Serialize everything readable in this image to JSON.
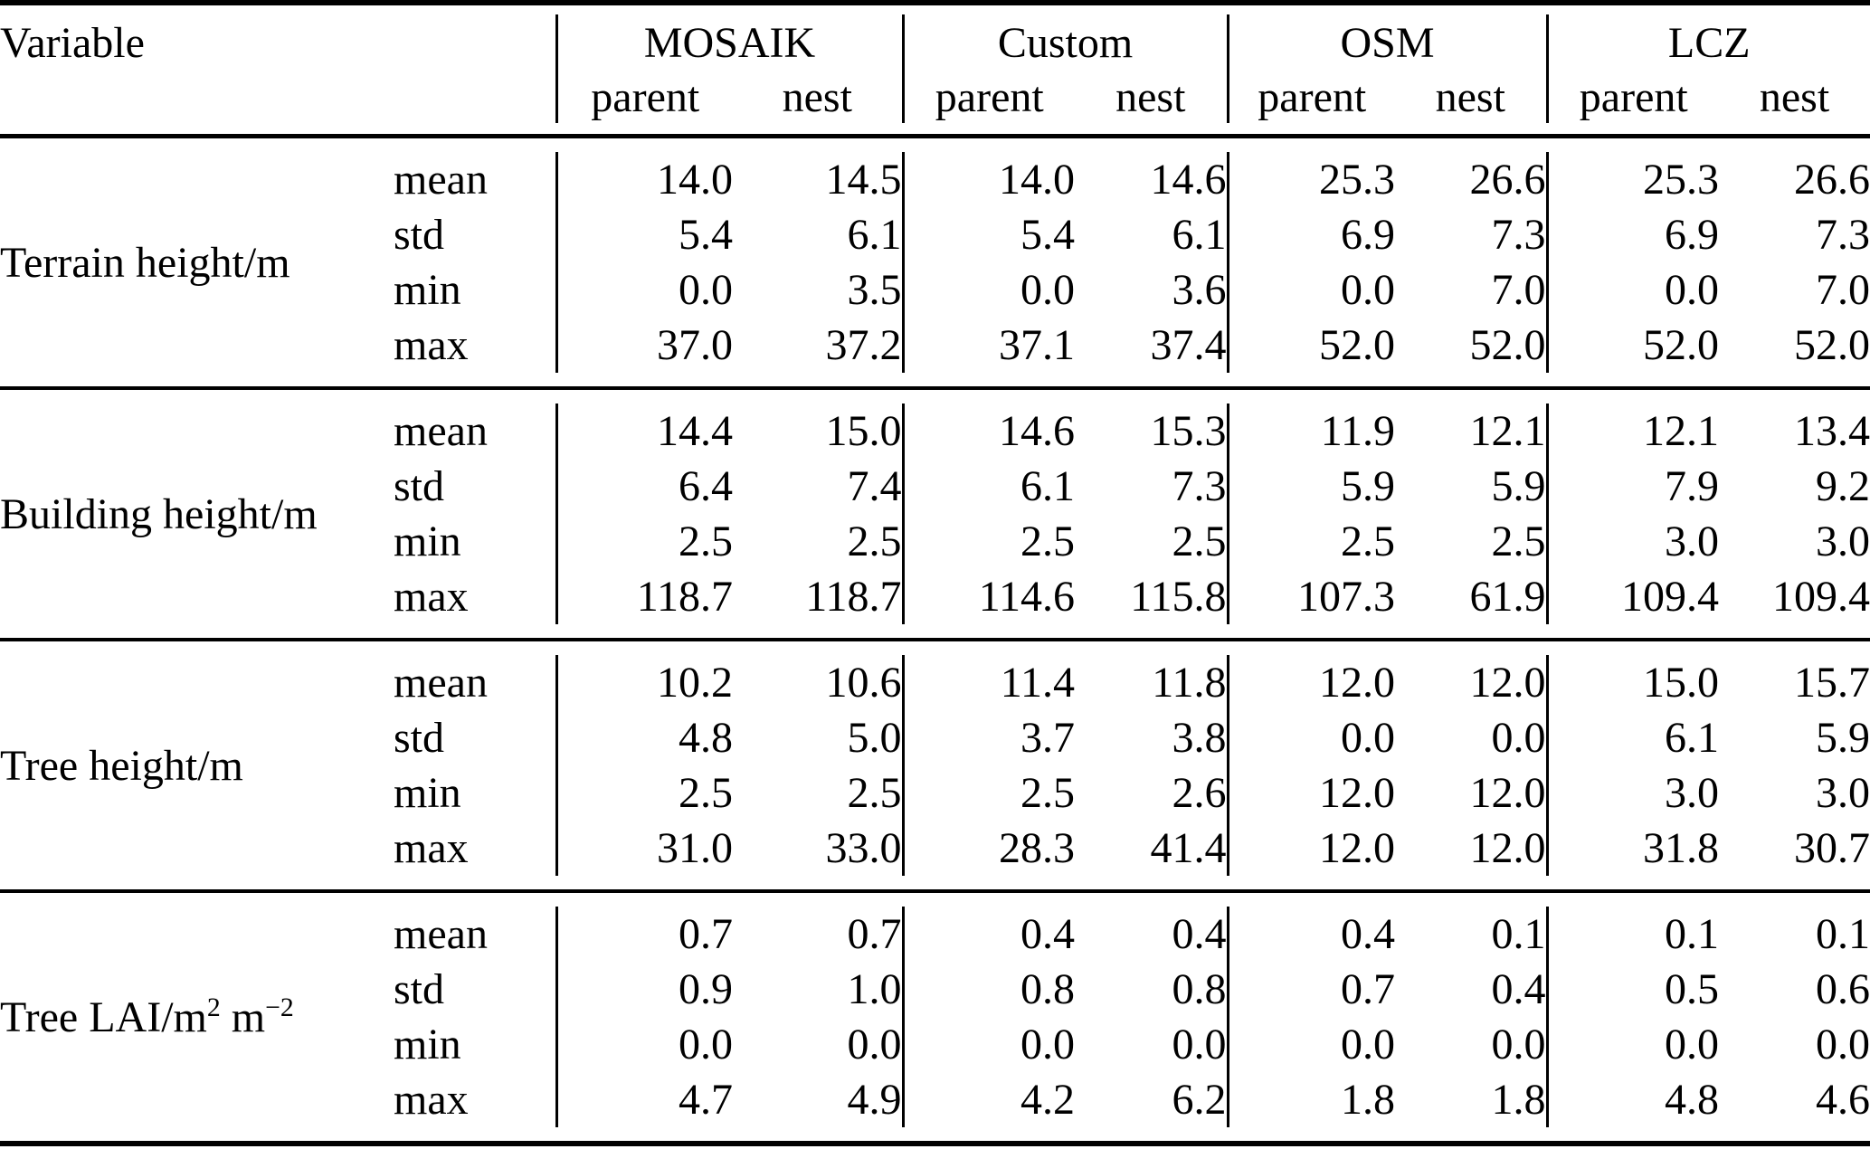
{
  "colors": {
    "background": "#ffffff",
    "text": "#000000",
    "rule": "#000000"
  },
  "table": {
    "header": {
      "variable_label": "Variable",
      "groups": [
        {
          "label": "MOSAIK"
        },
        {
          "label": "Custom"
        },
        {
          "label": "OSM"
        },
        {
          "label": "LCZ"
        }
      ],
      "subcolumns": [
        "parent",
        "nest"
      ]
    },
    "sections": [
      {
        "variable": [
          {
            "t": "Terrain height/m"
          }
        ],
        "rows": [
          {
            "stat": "mean",
            "values": [
              "14.0",
              "14.5",
              "14.0",
              "14.6",
              "25.3",
              "26.6",
              "25.3",
              "26.6"
            ]
          },
          {
            "stat": "std",
            "values": [
              "5.4",
              "6.1",
              "5.4",
              "6.1",
              "6.9",
              "7.3",
              "6.9",
              "7.3"
            ]
          },
          {
            "stat": "min",
            "values": [
              "0.0",
              "3.5",
              "0.0",
              "3.6",
              "0.0",
              "7.0",
              "0.0",
              "7.0"
            ]
          },
          {
            "stat": "max",
            "values": [
              "37.0",
              "37.2",
              "37.1",
              "37.4",
              "52.0",
              "52.0",
              "52.0",
              "52.0"
            ]
          }
        ]
      },
      {
        "variable": [
          {
            "t": "Building height/m"
          }
        ],
        "rows": [
          {
            "stat": "mean",
            "values": [
              "14.4",
              "15.0",
              "14.6",
              "15.3",
              "11.9",
              "12.1",
              "12.1",
              "13.4"
            ]
          },
          {
            "stat": "std",
            "values": [
              "6.4",
              "7.4",
              "6.1",
              "7.3",
              "5.9",
              "5.9",
              "7.9",
              "9.2"
            ]
          },
          {
            "stat": "min",
            "values": [
              "2.5",
              "2.5",
              "2.5",
              "2.5",
              "2.5",
              "2.5",
              "3.0",
              "3.0"
            ]
          },
          {
            "stat": "max",
            "values": [
              "118.7",
              "118.7",
              "114.6",
              "115.8",
              "107.3",
              "61.9",
              "109.4",
              "109.4"
            ]
          }
        ]
      },
      {
        "variable": [
          {
            "t": "Tree height/m"
          }
        ],
        "rows": [
          {
            "stat": "mean",
            "values": [
              "10.2",
              "10.6",
              "11.4",
              "11.8",
              "12.0",
              "12.0",
              "15.0",
              "15.7"
            ]
          },
          {
            "stat": "std",
            "values": [
              "4.8",
              "5.0",
              "3.7",
              "3.8",
              "0.0",
              "0.0",
              "6.1",
              "5.9"
            ]
          },
          {
            "stat": "min",
            "values": [
              "2.5",
              "2.5",
              "2.5",
              "2.6",
              "12.0",
              "12.0",
              "3.0",
              "3.0"
            ]
          },
          {
            "stat": "max",
            "values": [
              "31.0",
              "33.0",
              "28.3",
              "41.4",
              "12.0",
              "12.0",
              "31.8",
              "30.7"
            ]
          }
        ]
      },
      {
        "variable": [
          {
            "t": "Tree LAI/m"
          },
          {
            "t": "2",
            "sup": true
          },
          {
            "t": " m",
            "sup": false
          },
          {
            "t": "−2",
            "sup": true
          }
        ],
        "rows": [
          {
            "stat": "mean",
            "values": [
              "0.7",
              "0.7",
              "0.4",
              "0.4",
              "0.4",
              "0.1",
              "0.1",
              "0.1"
            ]
          },
          {
            "stat": "std",
            "values": [
              "0.9",
              "1.0",
              "0.8",
              "0.8",
              "0.7",
              "0.4",
              "0.5",
              "0.6"
            ]
          },
          {
            "stat": "min",
            "values": [
              "0.0",
              "0.0",
              "0.0",
              "0.0",
              "0.0",
              "0.0",
              "0.0",
              "0.0"
            ]
          },
          {
            "stat": "max",
            "values": [
              "4.7",
              "4.9",
              "4.2",
              "6.2",
              "1.8",
              "1.8",
              "4.8",
              "4.6"
            ]
          }
        ]
      }
    ]
  }
}
